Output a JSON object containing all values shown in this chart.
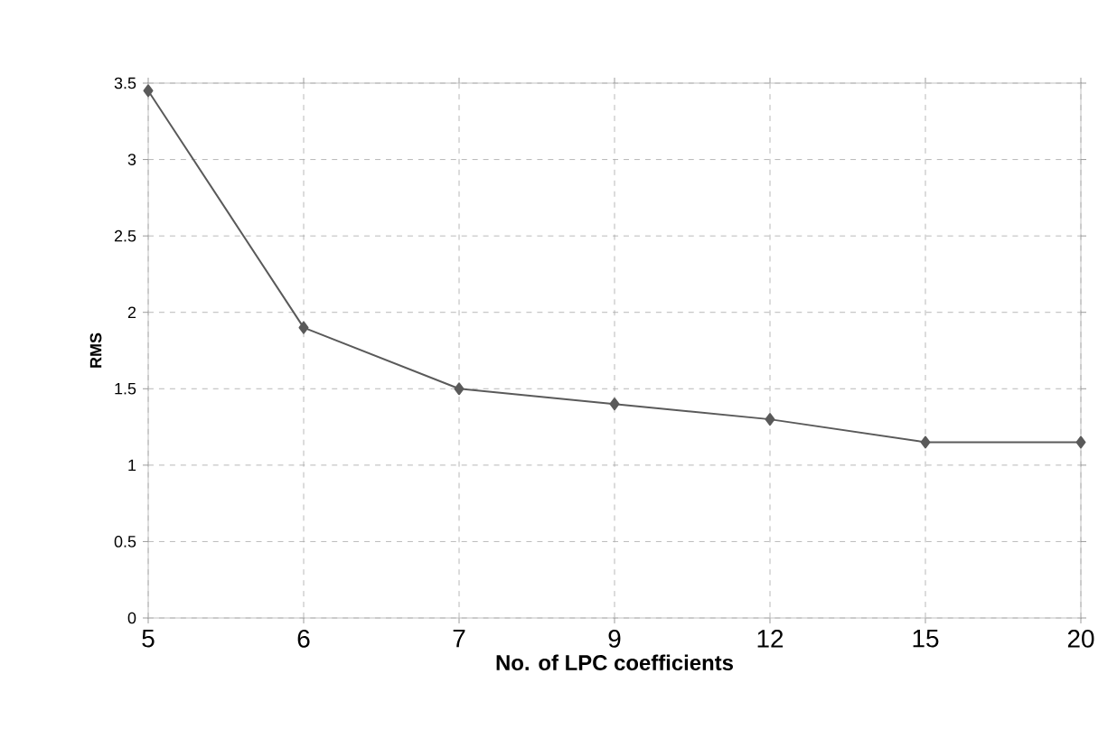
{
  "chart_data": {
    "type": "line",
    "xlabel": "No. of LPC coefficients",
    "ylabel": "RMS",
    "categories": [
      "5",
      "6",
      "7",
      "9",
      "12",
      "15",
      "20"
    ],
    "series": [
      {
        "color": "#5a5a5a",
        "values": [
          3.45,
          1.9,
          1.5,
          1.4,
          1.3,
          1.15,
          1.15
        ]
      }
    ],
    "ylim": [
      0,
      3.5
    ],
    "yticks": [
      0,
      0.5,
      1,
      1.5,
      2,
      2.5,
      3,
      3.5
    ],
    "grid": true,
    "marker": "diamond",
    "line_style": "solid"
  }
}
